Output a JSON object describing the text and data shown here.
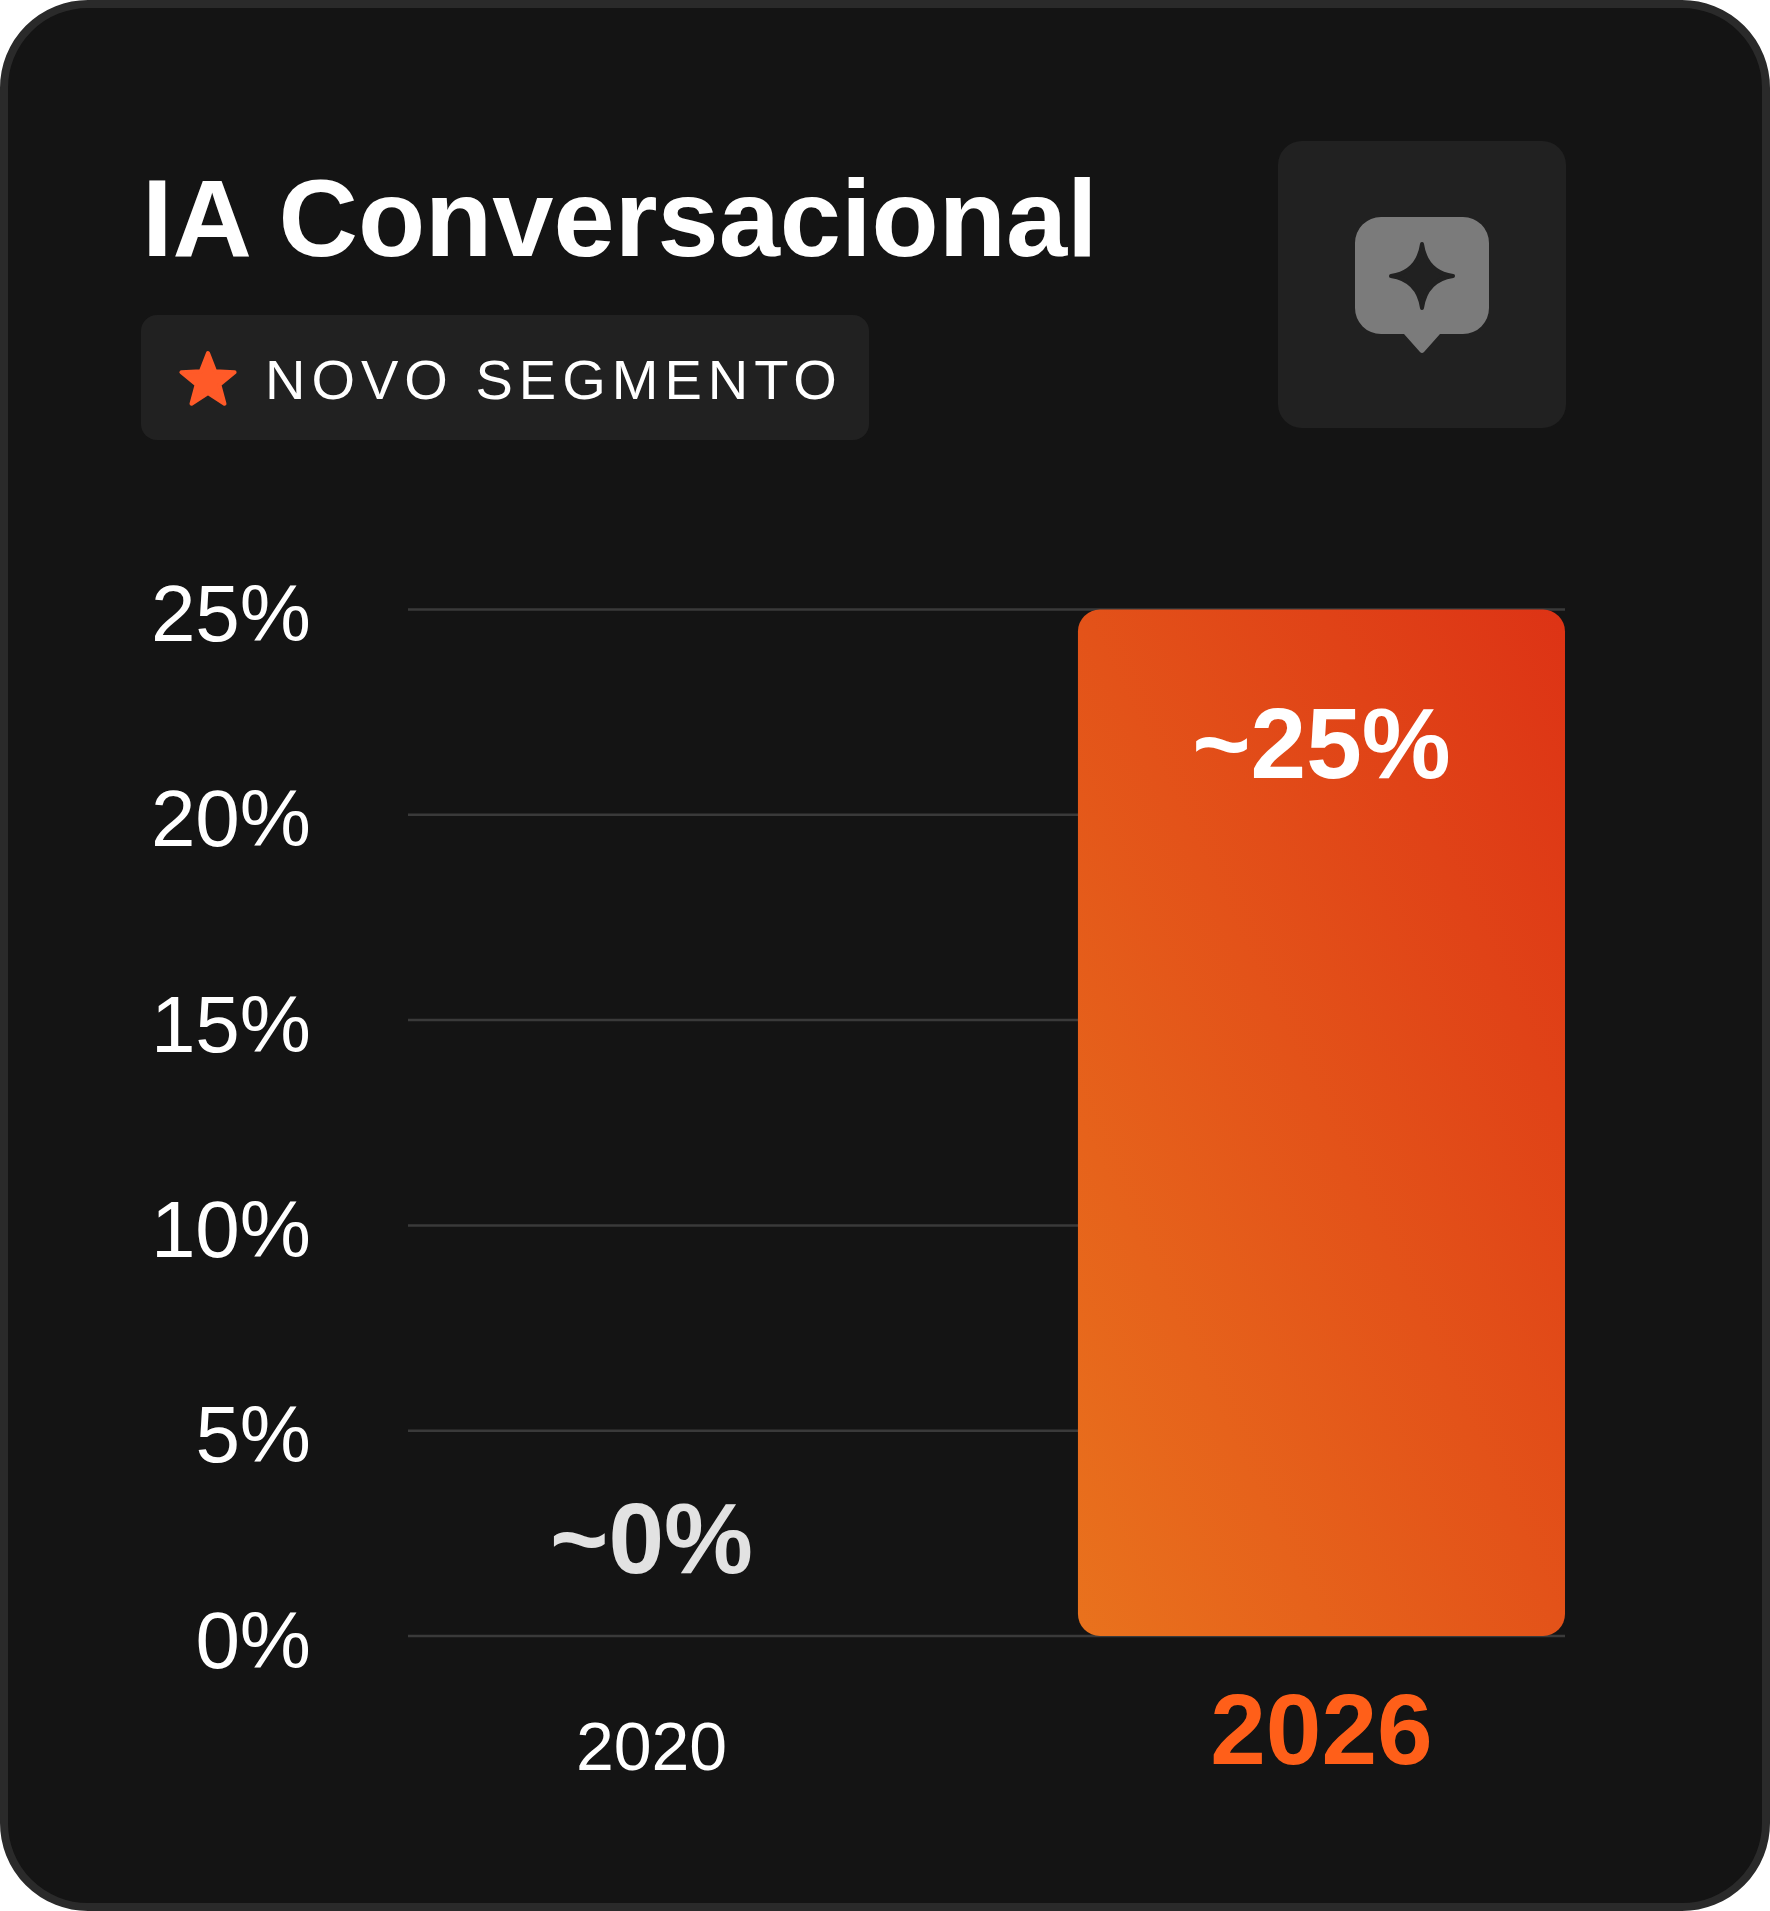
{
  "chart_data": {
    "type": "bar",
    "title": "IA Conversacional",
    "subtitle": "NOVO SEGMENTO",
    "categories": [
      "2020",
      "2026"
    ],
    "values": [
      0,
      25
    ],
    "value_labels": [
      "~0%",
      "~25%"
    ],
    "color": "#e65416",
    "ylim": [
      0,
      25
    ],
    "yticks": [
      {
        "value": 0,
        "label": "0%"
      },
      {
        "value": 5,
        "label": "5%"
      },
      {
        "value": 10,
        "label": "10%"
      },
      {
        "value": 15,
        "label": "15%"
      },
      {
        "value": 20,
        "label": "20%"
      },
      {
        "value": 25,
        "label": "25%"
      }
    ],
    "grid": "y"
  }
}
